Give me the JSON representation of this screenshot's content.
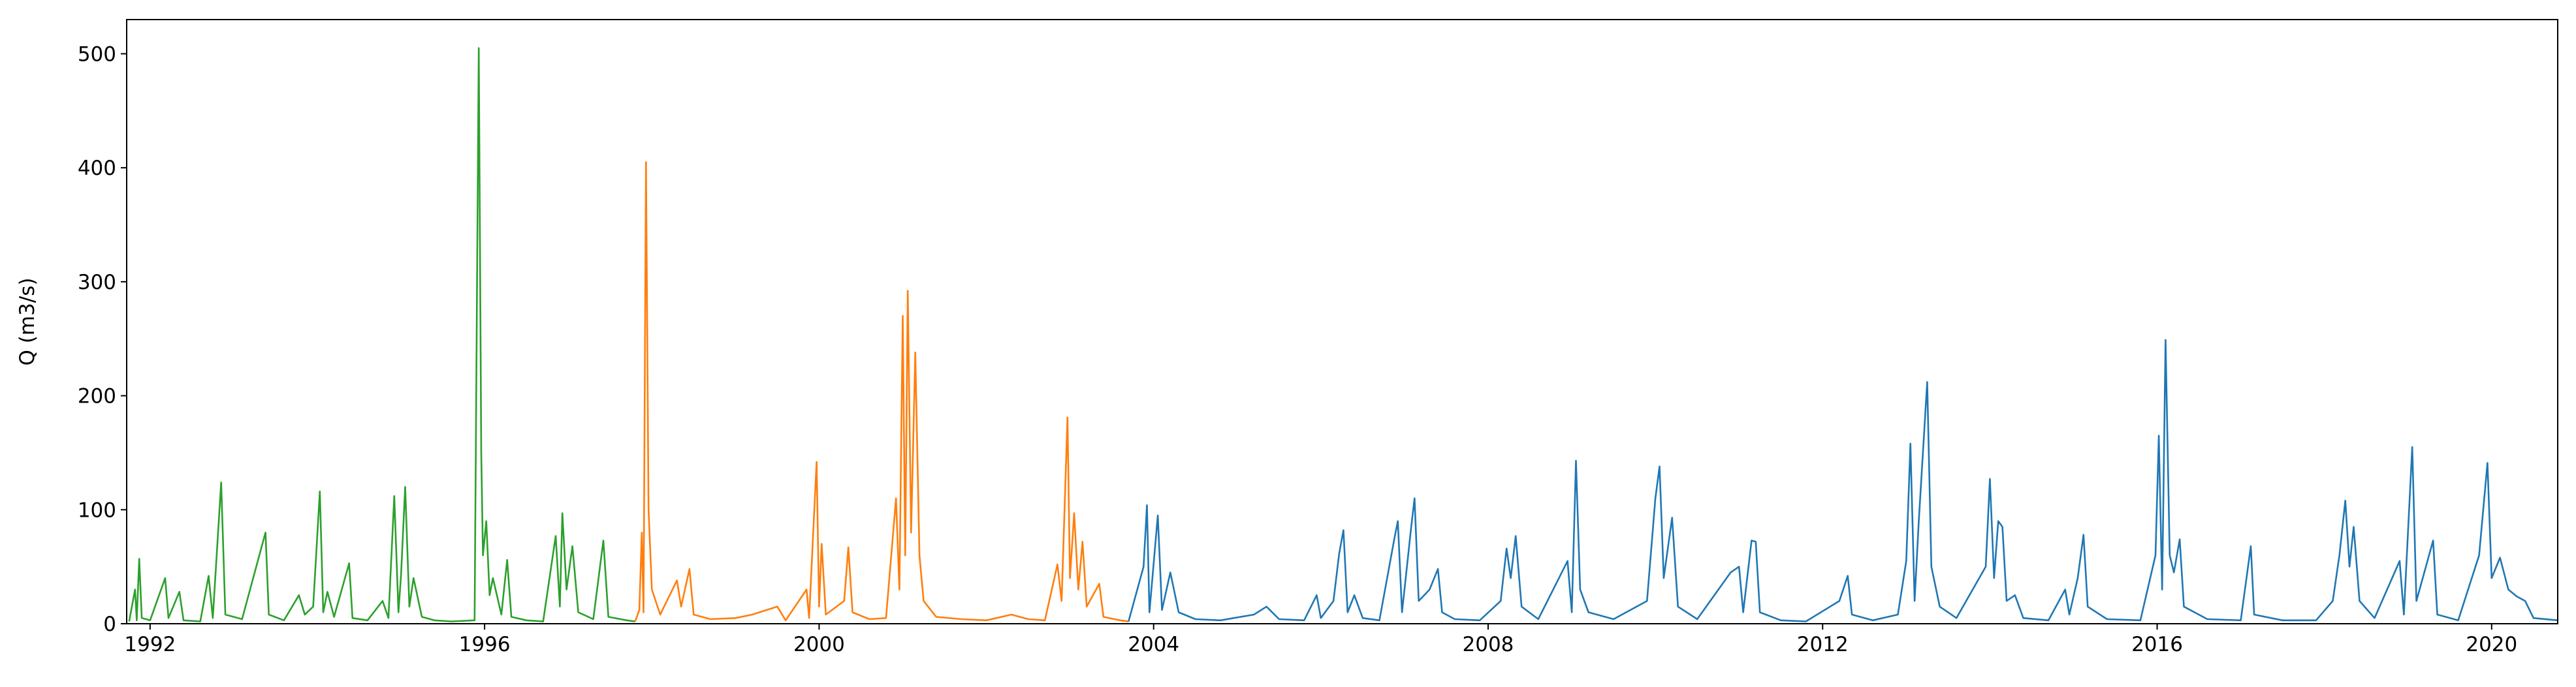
{
  "chart_data": {
    "type": "line",
    "y_label": "Q (m3/s)",
    "xlim": [
      1991.72,
      2020.79
    ],
    "xticks": [
      1992,
      1996,
      2000,
      2004,
      2008,
      2012,
      2016,
      2020
    ],
    "ylim": [
      0,
      530
    ],
    "yticks": [
      0,
      100,
      200,
      300,
      400,
      500
    ],
    "series": [
      {
        "color": "#2ca02c",
        "x": [
          1991.75,
          1991.82,
          1991.84,
          1991.87,
          1991.9,
          1992.0,
          1992.18,
          1992.22,
          1992.35,
          1992.4,
          1992.6,
          1992.7,
          1992.75,
          1992.85,
          1992.9,
          1993.1,
          1993.38,
          1993.42,
          1993.6,
          1993.78,
          1993.85,
          1993.95,
          1994.03,
          1994.07,
          1994.12,
          1994.2,
          1994.38,
          1994.42,
          1994.6,
          1994.78,
          1994.85,
          1994.92,
          1994.97,
          1995.0,
          1995.05,
          1995.1,
          1995.15,
          1995.25,
          1995.4,
          1995.6,
          1995.88,
          1995.93,
          1995.96,
          1995.98,
          1996.02,
          1996.06,
          1996.1,
          1996.2,
          1996.27,
          1996.32,
          1996.5,
          1996.7,
          1996.85,
          1996.9,
          1996.93,
          1996.98,
          1997.05,
          1997.12,
          1997.3,
          1997.42,
          1997.48,
          1997.7,
          1997.8
        ],
        "values": [
          2,
          30,
          3,
          57,
          5,
          3,
          40,
          5,
          28,
          3,
          2,
          42,
          5,
          124,
          8,
          4,
          80,
          8,
          3,
          25,
          8,
          15,
          116,
          10,
          28,
          6,
          53,
          5,
          3,
          20,
          5,
          112,
          10,
          42,
          120,
          15,
          40,
          6,
          3,
          2,
          3,
          505,
          150,
          60,
          90,
          25,
          40,
          8,
          56,
          6,
          3,
          2,
          77,
          15,
          97,
          30,
          68,
          10,
          4,
          73,
          6,
          3,
          2
        ]
      },
      {
        "color": "#ff7f0e",
        "x": [
          1997.8,
          1997.85,
          1997.88,
          1997.9,
          1997.93,
          1997.96,
          1998.0,
          1998.1,
          1998.3,
          1998.35,
          1998.45,
          1998.5,
          1998.7,
          1999.0,
          1999.2,
          1999.5,
          1999.6,
          1999.85,
          1999.88,
          1999.97,
          2000.0,
          2000.03,
          2000.08,
          2000.3,
          2000.35,
          2000.4,
          2000.6,
          2000.8,
          2000.88,
          2000.92,
          2000.96,
          2001.0,
          2001.03,
          2001.06,
          2001.1,
          2001.15,
          2001.2,
          2001.25,
          2001.4,
          2001.7,
          2002.0,
          2002.3,
          2002.5,
          2002.7,
          2002.85,
          2002.9,
          2002.97,
          2003.0,
          2003.05,
          2003.1,
          2003.15,
          2003.2,
          2003.35,
          2003.4,
          2003.6,
          2003.7
        ],
        "values": [
          2,
          12,
          80,
          10,
          405,
          100,
          30,
          8,
          38,
          15,
          48,
          8,
          4,
          5,
          8,
          15,
          3,
          30,
          5,
          142,
          15,
          70,
          8,
          20,
          67,
          10,
          4,
          5,
          75,
          110,
          30,
          270,
          60,
          292,
          80,
          238,
          60,
          20,
          6,
          4,
          3,
          8,
          4,
          3,
          52,
          20,
          181,
          40,
          97,
          30,
          72,
          15,
          35,
          6,
          3,
          2
        ]
      },
      {
        "color": "#1f77b4",
        "x": [
          2003.7,
          2003.88,
          2003.92,
          2003.95,
          2004.05,
          2004.1,
          2004.2,
          2004.3,
          2004.5,
          2004.8,
          2005.2,
          2005.35,
          2005.5,
          2005.8,
          2005.95,
          2006.0,
          2006.15,
          2006.22,
          2006.27,
          2006.32,
          2006.4,
          2006.5,
          2006.7,
          2006.88,
          2006.92,
          2006.97,
          2007.08,
          2007.12,
          2007.17,
          2007.3,
          2007.4,
          2007.45,
          2007.6,
          2007.9,
          2008.15,
          2008.22,
          2008.27,
          2008.33,
          2008.4,
          2008.6,
          2008.95,
          2009.0,
          2009.05,
          2009.1,
          2009.2,
          2009.5,
          2009.9,
          2010.0,
          2010.05,
          2010.1,
          2010.2,
          2010.27,
          2010.5,
          2010.9,
          2011.0,
          2011.05,
          2011.15,
          2011.2,
          2011.25,
          2011.5,
          2011.8,
          2012.2,
          2012.3,
          2012.35,
          2012.6,
          2012.9,
          2013.0,
          2013.05,
          2013.1,
          2013.15,
          2013.25,
          2013.3,
          2013.4,
          2013.6,
          2013.95,
          2014.0,
          2014.05,
          2014.1,
          2014.15,
          2014.2,
          2014.3,
          2014.4,
          2014.7,
          2014.9,
          2014.95,
          2015.05,
          2015.12,
          2015.17,
          2015.4,
          2015.8,
          2015.98,
          2016.02,
          2016.06,
          2016.1,
          2016.15,
          2016.2,
          2016.27,
          2016.32,
          2016.6,
          2017.0,
          2017.12,
          2017.16,
          2017.5,
          2017.9,
          2018.1,
          2018.18,
          2018.25,
          2018.3,
          2018.35,
          2018.42,
          2018.6,
          2018.9,
          2018.95,
          2019.05,
          2019.1,
          2019.3,
          2019.35,
          2019.6,
          2019.85,
          2019.95,
          2020.0,
          2020.1,
          2020.2,
          2020.3,
          2020.4,
          2020.5,
          2020.79
        ],
        "values": [
          2,
          50,
          104,
          10,
          95,
          12,
          45,
          10,
          4,
          3,
          8,
          15,
          4,
          3,
          25,
          5,
          20,
          62,
          82,
          10,
          25,
          5,
          3,
          75,
          90,
          10,
          85,
          110,
          20,
          30,
          48,
          10,
          4,
          3,
          20,
          66,
          40,
          77,
          15,
          4,
          55,
          10,
          143,
          30,
          10,
          4,
          20,
          110,
          138,
          40,
          93,
          15,
          4,
          45,
          50,
          10,
          73,
          72,
          10,
          3,
          2,
          20,
          42,
          8,
          3,
          8,
          55,
          158,
          20,
          90,
          212,
          50,
          15,
          5,
          50,
          127,
          40,
          90,
          85,
          20,
          25,
          5,
          3,
          30,
          8,
          40,
          78,
          15,
          4,
          3,
          60,
          165,
          30,
          249,
          60,
          45,
          74,
          15,
          4,
          3,
          68,
          8,
          3,
          3,
          20,
          60,
          108,
          50,
          85,
          20,
          5,
          55,
          8,
          155,
          20,
          73,
          8,
          3,
          60,
          141,
          40,
          58,
          30,
          24,
          20,
          5,
          3
        ]
      }
    ]
  }
}
